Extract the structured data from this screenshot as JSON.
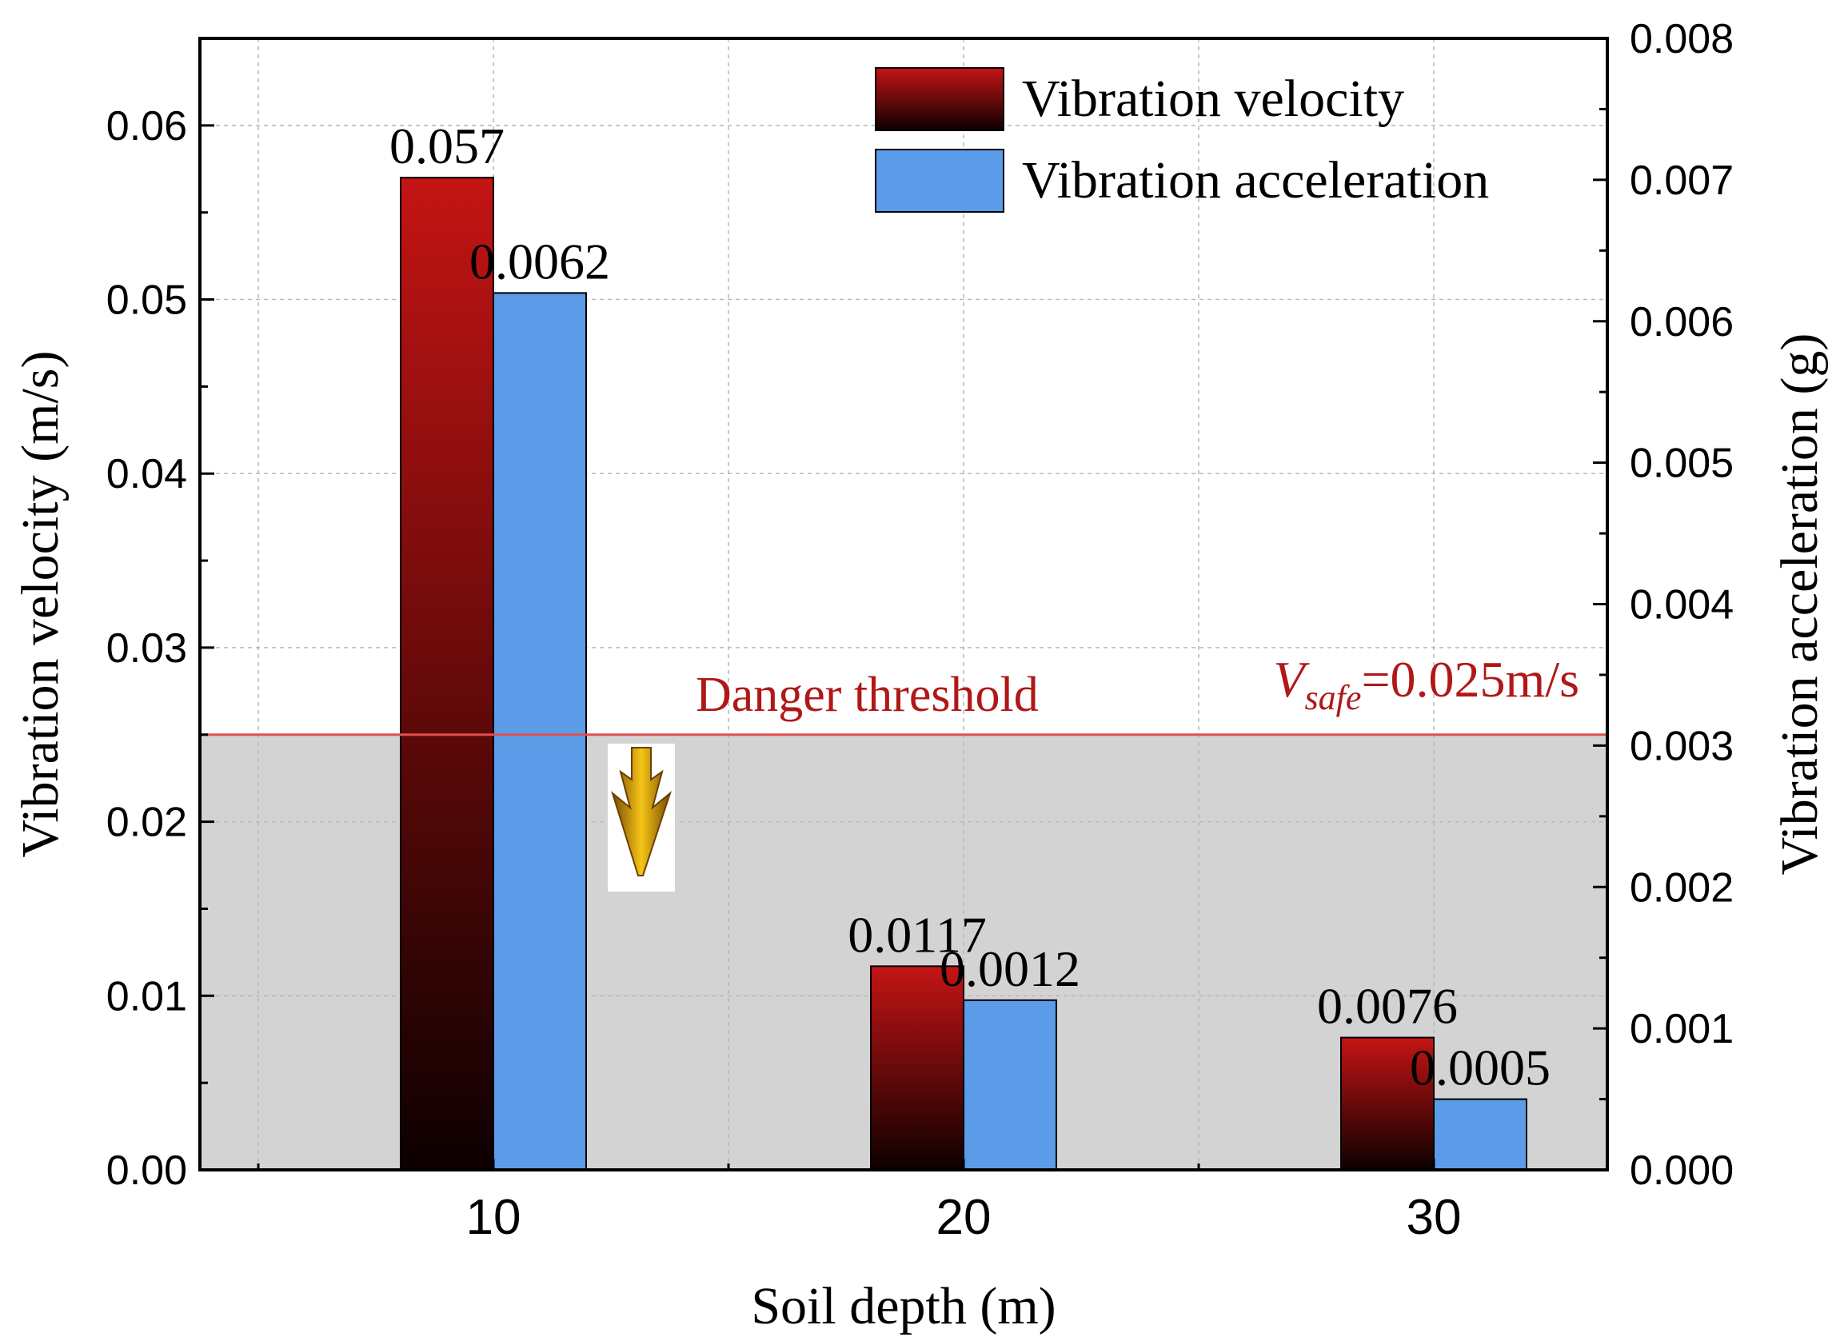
{
  "chart_data": {
    "type": "bar",
    "xlabel": "Soil depth (m)",
    "ylabel_left": "Vibration velocity (m/s)",
    "ylabel_right": "Vibration acceleration (g)",
    "categories": [
      "10",
      "20",
      "30"
    ],
    "ylim_left": [
      0,
      0.065
    ],
    "ylim_right": [
      0,
      0.008
    ],
    "yticks_left": [
      "0.00",
      "0.01",
      "0.02",
      "0.03",
      "0.04",
      "0.05",
      "0.06"
    ],
    "yticks_right": [
      "0.000",
      "0.001",
      "0.002",
      "0.003",
      "0.004",
      "0.005",
      "0.006",
      "0.007",
      "0.008"
    ],
    "grid": true,
    "legend_position": "top-right",
    "series": [
      {
        "name": "Vibration velocity",
        "axis": "left",
        "values": [
          0.057,
          0.0117,
          0.0076
        ],
        "labels": [
          "0.057",
          "0.0117",
          "0.0076"
        ],
        "color_top": "#c41414",
        "color_bottom": "#0d0000"
      },
      {
        "name": "Vibration acceleration",
        "axis": "right",
        "values": [
          0.0062,
          0.0012,
          0.0005
        ],
        "labels": [
          "0.0062",
          "0.0012",
          "0.0005"
        ],
        "color": "#5b9be8"
      }
    ],
    "threshold": {
      "value": 0.025,
      "label": "Danger threshold",
      "v_symbol": "V",
      "v_subscript": "safe",
      "v_value": "=0.025m/s",
      "line_color": "#e05050",
      "text_color": "#b01818",
      "zone_color": "#d3d3d3"
    },
    "arrow_icon": "down-arrow-icon"
  }
}
